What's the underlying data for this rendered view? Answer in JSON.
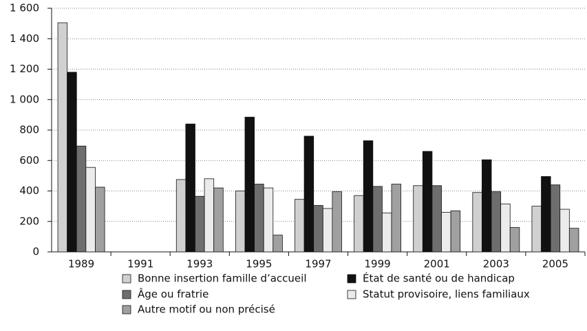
{
  "chart_data": {
    "type": "bar",
    "categories": [
      "1989",
      "1991",
      "1993",
      "1995",
      "1997",
      "1999",
      "2001",
      "2003",
      "2005"
    ],
    "series": [
      {
        "name": "Bonne insertion famille d’accueil",
        "color": "#d0d0d0",
        "values": [
          1505,
          null,
          475,
          400,
          345,
          370,
          435,
          390,
          300
        ]
      },
      {
        "name": "État de santé ou de handicap",
        "color": "#111111",
        "values": [
          1180,
          null,
          840,
          885,
          760,
          730,
          660,
          605,
          495
        ]
      },
      {
        "name": "Âge ou fratrie",
        "color": "#6e6e6e",
        "values": [
          695,
          null,
          365,
          445,
          305,
          430,
          435,
          395,
          440
        ]
      },
      {
        "name": "Statut provisoire, liens familiaux",
        "color": "#ebebeb",
        "values": [
          555,
          null,
          480,
          420,
          285,
          255,
          260,
          315,
          280
        ]
      },
      {
        "name": "Autre motif ou non précisé",
        "color": "#a0a0a0",
        "values": [
          425,
          null,
          420,
          110,
          395,
          445,
          270,
          160,
          155
        ]
      }
    ],
    "ylim": [
      0,
      1600
    ],
    "yticks": [
      0,
      200,
      400,
      600,
      800,
      {
        "value": 1000,
        "label": "1 000"
      },
      {
        "value": 1200,
        "label": "1 200"
      },
      {
        "value": 1400,
        "label": "1 400"
      },
      {
        "value": 1600,
        "label": "1 600"
      }
    ],
    "grid": true
  }
}
